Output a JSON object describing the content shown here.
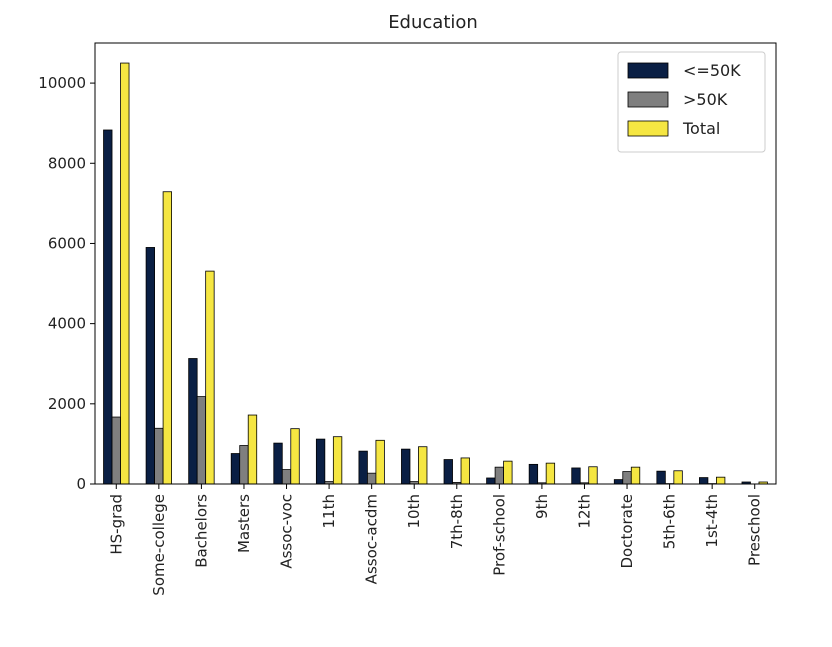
{
  "chart_data": {
    "type": "bar",
    "title": "Education",
    "xlabel": "",
    "ylabel": "",
    "categories": [
      "HS-grad",
      "Some-college",
      "Bachelors",
      "Masters",
      "Assoc-voc",
      "11th",
      "Assoc-acdm",
      "10th",
      "7th-8th",
      "Prof-school",
      "9th",
      "12th",
      "Doctorate",
      "5th-6th",
      "1st-4th",
      "Preschool"
    ],
    "series": [
      {
        "name": "<=50K",
        "color": "#0a1f44",
        "values": [
          8830,
          5900,
          3130,
          760,
          1020,
          1120,
          820,
          870,
          610,
          150,
          490,
          400,
          110,
          320,
          160,
          50
        ]
      },
      {
        "name": ">50K",
        "color": "#7f7f7f",
        "values": [
          1670,
          1390,
          2180,
          960,
          360,
          60,
          270,
          60,
          40,
          420,
          30,
          30,
          310,
          10,
          10,
          0
        ]
      },
      {
        "name": "Total",
        "color": "#f5e642",
        "values": [
          10500,
          7290,
          5310,
          1720,
          1380,
          1180,
          1090,
          930,
          650,
          570,
          520,
          430,
          420,
          330,
          170,
          50
        ]
      }
    ],
    "yticks": [
      0,
      2000,
      4000,
      6000,
      8000,
      10000
    ],
    "ylim": [
      0,
      11000
    ],
    "grid": false,
    "legend_position": "top-right"
  }
}
